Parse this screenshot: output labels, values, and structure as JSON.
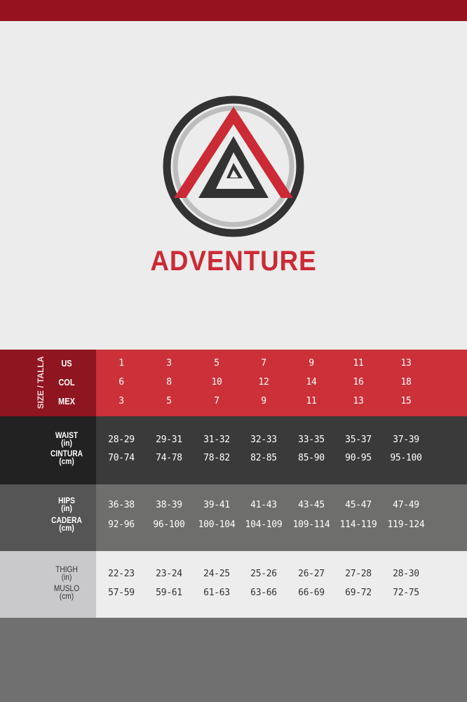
{
  "brand": {
    "name": "ADVENTURE",
    "colors": {
      "red": "#cc2a36",
      "dark": "#333333",
      "gray": "#bdbdbf"
    }
  },
  "size_table": {
    "group_label": "SIZE / TALLA",
    "sizes": [
      {
        "label": "US",
        "values": [
          "1",
          "3",
          "5",
          "7",
          "9",
          "11",
          "13"
        ]
      },
      {
        "label": "COL",
        "values": [
          "6",
          "8",
          "10",
          "12",
          "14",
          "16",
          "18"
        ]
      },
      {
        "label": "MEX",
        "values": [
          "3",
          "5",
          "7",
          "9",
          "11",
          "13",
          "15"
        ]
      }
    ],
    "measurements": [
      {
        "rows": [
          {
            "label": "WAIST",
            "unit": "(in)",
            "values": [
              "28-29",
              "29-31",
              "31-32",
              "32-33",
              "33-35",
              "35-37",
              "37-39"
            ]
          },
          {
            "label": "CINTURA",
            "unit": "(cm)",
            "values": [
              "70-74",
              "74-78",
              "78-82",
              "82-85",
              "85-90",
              "90-95",
              "95-100"
            ]
          }
        ]
      },
      {
        "rows": [
          {
            "label": "HIPS",
            "unit": "(in)",
            "values": [
              "36-38",
              "38-39",
              "39-41",
              "41-43",
              "43-45",
              "45-47",
              "47-49"
            ]
          },
          {
            "label": "CADERA",
            "unit": "(cm)",
            "values": [
              "92-96",
              "96-100",
              "100-104",
              "104-109",
              "109-114",
              "114-119",
              "119-124"
            ]
          }
        ]
      },
      {
        "rows": [
          {
            "label": "THIGH",
            "unit": "(in)",
            "values": [
              "22-23",
              "23-24",
              "24-25",
              "25-26",
              "26-27",
              "27-28",
              "28-30"
            ]
          },
          {
            "label": "MUSLO",
            "unit": "(cm)",
            "values": [
              "57-59",
              "59-61",
              "61-63",
              "63-66",
              "66-69",
              "69-72",
              "72-75"
            ]
          }
        ]
      }
    ]
  }
}
